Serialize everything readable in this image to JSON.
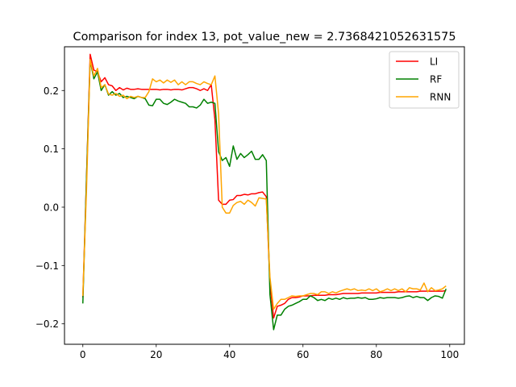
{
  "chart_data": {
    "type": "line",
    "title": "Comparison for index 13, pot_value_new = 2.7368421052631575",
    "xlabel": "",
    "ylabel": "",
    "xlim": [
      -5,
      104
    ],
    "ylim": [
      -0.235,
      0.275
    ],
    "xticks": [
      0,
      20,
      40,
      60,
      80,
      100
    ],
    "yticks": [
      -0.2,
      -0.1,
      0.0,
      0.1,
      0.2
    ],
    "xtick_labels": [
      "0",
      "20",
      "40",
      "60",
      "80",
      "100"
    ],
    "ytick_labels": [
      "−0.2",
      "−0.1",
      "0.0",
      "0.1",
      "0.2"
    ],
    "grid": false,
    "legend_position": "top-right",
    "x": [
      0,
      1,
      2,
      3,
      4,
      5,
      6,
      7,
      8,
      9,
      10,
      11,
      12,
      13,
      14,
      15,
      16,
      17,
      18,
      19,
      20,
      21,
      22,
      23,
      24,
      25,
      26,
      27,
      28,
      29,
      30,
      31,
      32,
      33,
      34,
      35,
      36,
      37,
      38,
      39,
      40,
      41,
      42,
      43,
      44,
      45,
      46,
      47,
      48,
      49,
      50,
      51,
      52,
      53,
      54,
      55,
      56,
      57,
      58,
      59,
      60,
      61,
      62,
      63,
      64,
      65,
      66,
      67,
      68,
      69,
      70,
      71,
      72,
      73,
      74,
      75,
      76,
      77,
      78,
      79,
      80,
      81,
      82,
      83,
      84,
      85,
      86,
      87,
      88,
      89,
      90,
      91,
      92,
      93,
      94,
      95,
      96,
      97,
      98,
      99
    ],
    "series": [
      {
        "name": "LI",
        "color": "#ff0000",
        "values": [
          -0.155,
          0.05,
          0.262,
          0.235,
          0.232,
          0.215,
          0.222,
          0.21,
          0.208,
          0.2,
          0.205,
          0.201,
          0.204,
          0.202,
          0.202,
          0.203,
          0.202,
          0.202,
          0.202,
          0.202,
          0.202,
          0.201,
          0.202,
          0.202,
          0.201,
          0.202,
          0.202,
          0.201,
          0.203,
          0.205,
          0.205,
          0.203,
          0.2,
          0.203,
          0.2,
          0.21,
          0.15,
          0.012,
          0.005,
          0.005,
          0.012,
          0.013,
          0.02,
          0.02,
          0.022,
          0.021,
          0.023,
          0.023,
          0.025,
          0.026,
          0.018,
          -0.13,
          -0.19,
          -0.17,
          -0.168,
          -0.165,
          -0.158,
          -0.155,
          -0.155,
          -0.154,
          -0.152,
          -0.152,
          -0.152,
          -0.151,
          -0.151,
          -0.151,
          -0.151,
          -0.15,
          -0.15,
          -0.15,
          -0.149,
          -0.148,
          -0.148,
          -0.148,
          -0.148,
          -0.148,
          -0.147,
          -0.147,
          -0.147,
          -0.147,
          -0.147,
          -0.146,
          -0.146,
          -0.146,
          -0.146,
          -0.146,
          -0.145,
          -0.145,
          -0.145,
          -0.145,
          -0.145,
          -0.145,
          -0.144,
          -0.144,
          -0.144,
          -0.144,
          -0.144,
          -0.144,
          -0.144,
          -0.143
        ]
      },
      {
        "name": "RF",
        "color": "#008000",
        "values": [
          -0.165,
          0.05,
          0.252,
          0.22,
          0.232,
          0.2,
          0.21,
          0.192,
          0.198,
          0.192,
          0.195,
          0.188,
          0.19,
          0.188,
          0.186,
          0.19,
          0.188,
          0.186,
          0.175,
          0.174,
          0.185,
          0.185,
          0.178,
          0.176,
          0.18,
          0.185,
          0.182,
          0.18,
          0.178,
          0.172,
          0.172,
          0.17,
          0.175,
          0.185,
          0.178,
          0.18,
          0.178,
          0.095,
          0.08,
          0.085,
          0.07,
          0.105,
          0.082,
          0.092,
          0.085,
          0.09,
          0.096,
          0.082,
          0.082,
          0.09,
          0.08,
          -0.15,
          -0.21,
          -0.185,
          -0.185,
          -0.175,
          -0.17,
          -0.168,
          -0.165,
          -0.162,
          -0.158,
          -0.158,
          -0.152,
          -0.155,
          -0.16,
          -0.158,
          -0.16,
          -0.156,
          -0.158,
          -0.156,
          -0.158,
          -0.155,
          -0.157,
          -0.156,
          -0.156,
          -0.155,
          -0.156,
          -0.155,
          -0.158,
          -0.158,
          -0.157,
          -0.155,
          -0.156,
          -0.155,
          -0.155,
          -0.155,
          -0.156,
          -0.155,
          -0.153,
          -0.152,
          -0.155,
          -0.153,
          -0.155,
          -0.155,
          -0.16,
          -0.155,
          -0.152,
          -0.153,
          -0.156,
          -0.14
        ]
      },
      {
        "name": "RNN",
        "color": "#ffa500",
        "values": [
          -0.152,
          0.03,
          0.253,
          0.225,
          0.238,
          0.205,
          0.21,
          0.194,
          0.192,
          0.195,
          0.19,
          0.192,
          0.186,
          0.19,
          0.188,
          0.19,
          0.188,
          0.188,
          0.198,
          0.22,
          0.215,
          0.218,
          0.213,
          0.218,
          0.214,
          0.218,
          0.21,
          0.215,
          0.21,
          0.215,
          0.215,
          0.212,
          0.21,
          0.215,
          0.212,
          0.21,
          0.225,
          0.16,
          0.0,
          -0.01,
          -0.01,
          0.003,
          0.008,
          0.01,
          0.005,
          0.012,
          0.008,
          0.002,
          0.016,
          0.015,
          0.014,
          -0.12,
          -0.175,
          -0.165,
          -0.158,
          -0.158,
          -0.155,
          -0.152,
          -0.153,
          -0.152,
          -0.152,
          -0.15,
          -0.148,
          -0.148,
          -0.15,
          -0.145,
          -0.145,
          -0.148,
          -0.145,
          -0.147,
          -0.144,
          -0.142,
          -0.14,
          -0.142,
          -0.14,
          -0.143,
          -0.142,
          -0.143,
          -0.14,
          -0.143,
          -0.14,
          -0.145,
          -0.143,
          -0.14,
          -0.143,
          -0.14,
          -0.143,
          -0.14,
          -0.145,
          -0.138,
          -0.14,
          -0.14,
          -0.142,
          -0.13,
          -0.145,
          -0.138,
          -0.143,
          -0.142,
          -0.14,
          -0.135
        ]
      }
    ]
  }
}
